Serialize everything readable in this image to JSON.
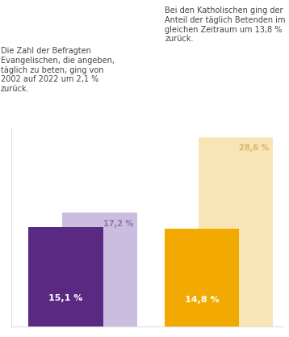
{
  "chart_data": {
    "type": "bar",
    "categories": [
      null,
      null
    ],
    "series": [
      {
        "colors": [
          "#cbbde0",
          "#f9e4b6"
        ],
        "values": [
          17.2,
          28.6
        ],
        "value_labels": [
          "17,2 %",
          "28,6 %"
        ]
      },
      {
        "colors": [
          "#5a2a82",
          "#f3aa00"
        ],
        "values": [
          15.1,
          14.8
        ],
        "value_labels": [
          "15,1 %",
          "14,8 %"
        ]
      }
    ],
    "annotations": [
      "Die Zahl der Befragten Evangelischen, die angeben, täglich zu beten, ging von 2002 auf 2022 um 2,1 % zurück.",
      "Bei den Katholischen ging der Anteil der täglich Betenden im gleichen Zeitraum um 13,8 % zurück."
    ],
    "ylim": [
      0,
      30
    ],
    "yticks": [],
    "data_labels": true,
    "tick_labels": false
  }
}
